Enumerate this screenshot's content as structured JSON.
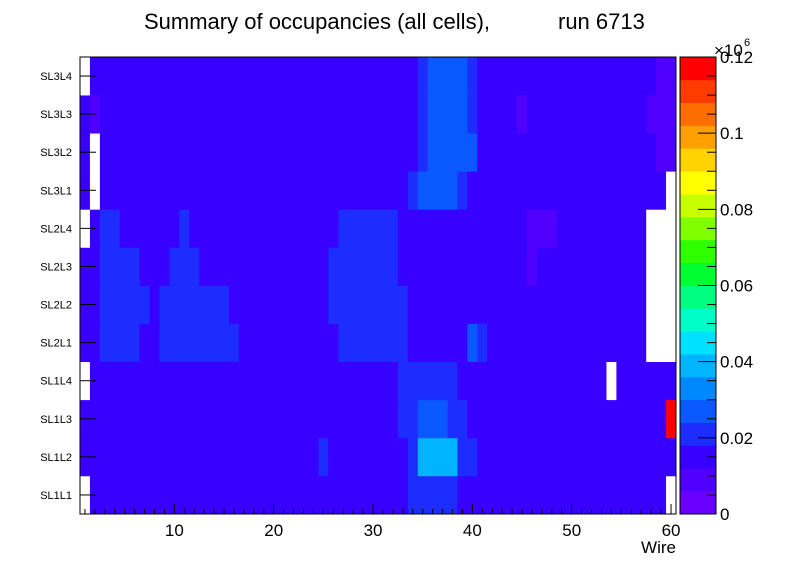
{
  "chart_data": {
    "type": "heatmap",
    "title": "Summary of occupancies (all cells),",
    "run_label": "run 6713",
    "xlabel": "Wire",
    "ylabel": "",
    "x_range": [
      0.5,
      60.5
    ],
    "x_ticks": [
      "10",
      "20",
      "30",
      "40",
      "50",
      "60"
    ],
    "x_tick_values": [
      10,
      20,
      30,
      40,
      50,
      60
    ],
    "y_categories": [
      "SL1L1",
      "SL1L2",
      "SL1L3",
      "SL1L4",
      "SL2L1",
      "SL2L2",
      "SL2L3",
      "SL2L4",
      "SL3L1",
      "SL3L2",
      "SL3L3",
      "SL3L4"
    ],
    "z_range": [
      0,
      120000
    ],
    "z_ticks": [
      "0",
      "0.02",
      "0.04",
      "0.06",
      "0.08",
      "0.1",
      "0.12"
    ],
    "z_tick_values": [
      0,
      20000,
      40000,
      60000,
      80000,
      100000,
      120000
    ],
    "z_multiplier_base": "×10",
    "z_multiplier_exp": "6",
    "palette": [
      "#6a00ff",
      "#5000ff",
      "#3800ff",
      "#1d2cff",
      "#0a58ff",
      "#0088ff",
      "#00b4ff",
      "#00e0ff",
      "#00ffc8",
      "#00ff80",
      "#00ff30",
      "#30ff00",
      "#80ff00",
      "#c8ff00",
      "#ffff00",
      "#ffd200",
      "#ffa000",
      "#ff6e00",
      "#ff3c00",
      "#ff0000"
    ],
    "missing_color": "#ffffff",
    "rows": {
      "SL1L1": [
        [
          1,
          1,
          0
        ],
        [
          2,
          15,
          17000
        ],
        [
          16,
          16,
          12000
        ],
        [
          17,
          30,
          17000
        ],
        [
          31,
          32,
          12000
        ],
        [
          33,
          33,
          17000
        ],
        [
          34,
          38,
          22000
        ],
        [
          39,
          39,
          17000
        ],
        [
          40,
          59,
          12000
        ],
        [
          60,
          60,
          0
        ]
      ],
      "SL1L2": [
        [
          1,
          24,
          17000
        ],
        [
          25,
          25,
          22000
        ],
        [
          26,
          33,
          17000
        ],
        [
          34,
          34,
          23000
        ],
        [
          35,
          38,
          37000
        ],
        [
          39,
          40,
          23000
        ],
        [
          41,
          58,
          17000
        ],
        [
          59,
          59,
          12000
        ],
        [
          60,
          60,
          17000
        ]
      ],
      "SL1L3": [
        [
          1,
          9,
          17000
        ],
        [
          10,
          11,
          12000
        ],
        [
          12,
          32,
          17000
        ],
        [
          33,
          34,
          22000
        ],
        [
          35,
          37,
          29000
        ],
        [
          38,
          39,
          22000
        ],
        [
          40,
          41,
          17000
        ],
        [
          42,
          42,
          12000
        ],
        [
          43,
          59,
          12000
        ],
        [
          60,
          60,
          120000
        ]
      ],
      "SL1L4": [
        [
          1,
          1,
          0
        ],
        [
          2,
          31,
          17000
        ],
        [
          32,
          32,
          12000
        ],
        [
          33,
          38,
          22000
        ],
        [
          39,
          53,
          12000
        ],
        [
          54,
          54,
          0
        ],
        [
          55,
          60,
          12000
        ]
      ],
      "SL2L1": [
        [
          1,
          2,
          17000
        ],
        [
          3,
          6,
          23000
        ],
        [
          7,
          8,
          17000
        ],
        [
          9,
          16,
          23000
        ],
        [
          17,
          23,
          17000
        ],
        [
          24,
          24,
          12000
        ],
        [
          25,
          26,
          17000
        ],
        [
          27,
          33,
          23000
        ],
        [
          34,
          34,
          12000
        ],
        [
          35,
          39,
          12000
        ],
        [
          40,
          40,
          29000
        ],
        [
          41,
          41,
          23000
        ],
        [
          42,
          57,
          12000
        ],
        [
          58,
          60,
          0
        ]
      ],
      "SL2L2": [
        [
          1,
          1,
          12000
        ],
        [
          2,
          2,
          17000
        ],
        [
          3,
          7,
          23000
        ],
        [
          8,
          8,
          17000
        ],
        [
          9,
          15,
          23000
        ],
        [
          16,
          24,
          17000
        ],
        [
          25,
          25,
          12000
        ],
        [
          26,
          33,
          23000
        ],
        [
          34,
          57,
          12000
        ],
        [
          58,
          60,
          0
        ]
      ],
      "SL2L3": [
        [
          1,
          2,
          17000
        ],
        [
          3,
          6,
          23000
        ],
        [
          7,
          9,
          17000
        ],
        [
          10,
          12,
          23000
        ],
        [
          13,
          22,
          17000
        ],
        [
          23,
          25,
          12000
        ],
        [
          26,
          32,
          23000
        ],
        [
          33,
          33,
          17000
        ],
        [
          34,
          45,
          12000
        ],
        [
          46,
          46,
          9000
        ],
        [
          47,
          57,
          12000
        ],
        [
          58,
          60,
          0
        ]
      ],
      "SL2L4": [
        [
          1,
          1,
          0
        ],
        [
          2,
          2,
          17000
        ],
        [
          3,
          4,
          23000
        ],
        [
          5,
          10,
          17000
        ],
        [
          11,
          11,
          23000
        ],
        [
          12,
          22,
          17000
        ],
        [
          23,
          25,
          12000
        ],
        [
          26,
          26,
          17000
        ],
        [
          27,
          32,
          23000
        ],
        [
          33,
          33,
          17000
        ],
        [
          34,
          45,
          12000
        ],
        [
          46,
          46,
          9000
        ],
        [
          47,
          48,
          7000
        ],
        [
          49,
          57,
          12000
        ],
        [
          58,
          60,
          0
        ]
      ],
      "SL3L1": [
        [
          1,
          1,
          12000
        ],
        [
          2,
          2,
          0
        ],
        [
          3,
          32,
          12000
        ],
        [
          33,
          33,
          17000
        ],
        [
          34,
          34,
          22000
        ],
        [
          35,
          38,
          29000
        ],
        [
          39,
          39,
          22000
        ],
        [
          40,
          48,
          12000
        ],
        [
          49,
          49,
          17000
        ],
        [
          50,
          59,
          12000
        ],
        [
          60,
          60,
          0
        ]
      ],
      "SL3L2": [
        [
          1,
          1,
          12000
        ],
        [
          2,
          2,
          0
        ],
        [
          3,
          33,
          12000
        ],
        [
          34,
          34,
          17000
        ],
        [
          35,
          35,
          22000
        ],
        [
          36,
          40,
          29000
        ],
        [
          41,
          58,
          12000
        ],
        [
          59,
          60,
          7000
        ]
      ],
      "SL3L3": [
        [
          1,
          1,
          12000
        ],
        [
          2,
          2,
          7000
        ],
        [
          3,
          33,
          12000
        ],
        [
          34,
          34,
          17000
        ],
        [
          35,
          35,
          22000
        ],
        [
          36,
          39,
          29000
        ],
        [
          40,
          40,
          22000
        ],
        [
          41,
          44,
          12000
        ],
        [
          45,
          45,
          7000
        ],
        [
          46,
          57,
          12000
        ],
        [
          58,
          60,
          7000
        ]
      ],
      "SL3L4": [
        [
          1,
          1,
          0
        ],
        [
          2,
          33,
          12000
        ],
        [
          34,
          34,
          17000
        ],
        [
          35,
          35,
          22000
        ],
        [
          36,
          39,
          29000
        ],
        [
          40,
          40,
          22000
        ],
        [
          41,
          41,
          17000
        ],
        [
          42,
          58,
          12000
        ],
        [
          59,
          60,
          7000
        ]
      ]
    }
  }
}
